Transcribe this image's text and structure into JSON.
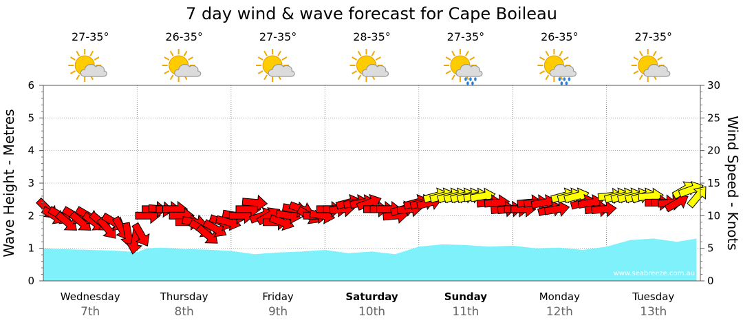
{
  "chart_data": {
    "type": "area",
    "title": "7 day wind & wave forecast for Cape Boileau",
    "ylabel": "Wave Height - Metres",
    "y2label": "Wind Speed - Knots",
    "ylim": [
      0,
      6
    ],
    "y2lim": [
      0,
      30
    ],
    "yticks": [
      "0",
      "1",
      "2",
      "3",
      "4",
      "5",
      "6"
    ],
    "y2ticks": [
      "0",
      "5",
      "10",
      "15",
      "20",
      "25",
      "30"
    ],
    "grid": true,
    "credit": "www.seabreeze.com.au",
    "days": [
      {
        "name": "Wednesday",
        "date": "7th",
        "temp": "27-35°",
        "weather_icon": "partly-cloudy-icon",
        "bold": false
      },
      {
        "name": "Thursday",
        "date": "8th",
        "temp": "26-35°",
        "weather_icon": "partly-cloudy-icon",
        "bold": false
      },
      {
        "name": "Friday",
        "date": "9th",
        "temp": "27-35°",
        "weather_icon": "partly-cloudy-icon",
        "bold": false
      },
      {
        "name": "Saturday",
        "date": "10th",
        "temp": "28-35°",
        "weather_icon": "partly-cloudy-icon",
        "bold": true
      },
      {
        "name": "Sunday",
        "date": "11th",
        "temp": "27-35°",
        "weather_icon": "showers-icon",
        "bold": true
      },
      {
        "name": "Monday",
        "date": "12th",
        "temp": "26-35°",
        "weather_icon": "showers-icon",
        "bold": false
      },
      {
        "name": "Tuesday",
        "date": "13th",
        "temp": "27-35°",
        "weather_icon": "partly-cloudy-icon",
        "bold": false
      }
    ],
    "wave_series": {
      "name": "Wave height",
      "x_days": [
        0,
        0.25,
        0.5,
        0.75,
        1,
        1.1,
        1.25,
        1.5,
        1.75,
        2,
        2.25,
        2.5,
        2.75,
        3,
        3.25,
        3.5,
        3.75,
        4,
        4.25,
        4.5,
        4.75,
        5,
        5.25,
        5.5,
        5.75,
        6,
        6.25,
        6.5,
        6.75,
        6.96
      ],
      "values": [
        1.0,
        0.97,
        0.95,
        0.93,
        0.88,
        1.0,
        1.02,
        0.98,
        0.96,
        0.92,
        0.82,
        0.87,
        0.9,
        0.95,
        0.85,
        0.9,
        0.82,
        1.05,
        1.12,
        1.1,
        1.05,
        1.08,
        1.0,
        1.02,
        0.95,
        1.05,
        1.25,
        1.3,
        1.2,
        1.3
      ]
    },
    "wind_series": {
      "name": "Wind",
      "x_days": [
        0,
        0.07,
        0.14,
        0.21,
        0.29,
        0.36,
        0.43,
        0.5,
        0.57,
        0.64,
        0.71,
        0.79,
        0.86,
        0.93,
        1,
        1.07,
        1.14,
        1.21,
        1.29,
        1.36,
        1.43,
        1.5,
        1.57,
        1.64,
        1.71,
        1.79,
        1.86,
        1.93,
        2,
        2.07,
        2.14,
        2.21,
        2.29,
        2.36,
        2.43,
        2.5,
        2.57,
        2.64,
        2.71,
        2.79,
        2.86,
        2.93,
        3,
        3.07,
        3.14,
        3.21,
        3.29,
        3.36,
        3.43,
        3.5,
        3.57,
        3.64,
        3.71,
        3.79,
        3.86,
        3.93,
        4,
        4.07,
        4.14,
        4.21,
        4.29,
        4.36,
        4.43,
        4.5,
        4.57,
        4.64,
        4.71,
        4.79,
        4.86,
        4.93,
        5,
        5.07,
        5.14,
        5.21,
        5.29,
        5.36,
        5.43,
        5.5,
        5.57,
        5.64,
        5.71,
        5.79,
        5.86,
        5.93,
        6,
        6.07,
        6.14,
        6.21,
        6.29,
        6.36,
        6.43,
        6.5,
        6.57,
        6.64,
        6.71,
        6.79,
        6.86,
        6.93
      ],
      "speed_knots": [
        11,
        10,
        10,
        9,
        10,
        9,
        10,
        9,
        9,
        8,
        9,
        8,
        7,
        6,
        7,
        10,
        11,
        11,
        11,
        11,
        10,
        9,
        9,
        8,
        7,
        8,
        9,
        9,
        10,
        10,
        11,
        12,
        10,
        10,
        9,
        9,
        10,
        11,
        11,
        10,
        10,
        10,
        11,
        11,
        11,
        12,
        12,
        12,
        12,
        11,
        11,
        11,
        10,
        11,
        11,
        12,
        12,
        12,
        13,
        13,
        13,
        13,
        13,
        13,
        13,
        13,
        12,
        12,
        11,
        11,
        11,
        11,
        12,
        12,
        12,
        11,
        11,
        13,
        13,
        13,
        12,
        12,
        11,
        11,
        13,
        13,
        13,
        13,
        13,
        13,
        13,
        12,
        12,
        12,
        12,
        14,
        14,
        13
      ],
      "direction_deg": [
        315,
        300,
        300,
        310,
        300,
        310,
        300,
        305,
        310,
        320,
        300,
        330,
        350,
        10,
        330,
        270,
        270,
        275,
        270,
        270,
        270,
        270,
        280,
        300,
        310,
        300,
        290,
        285,
        280,
        270,
        270,
        275,
        250,
        240,
        270,
        290,
        280,
        280,
        290,
        300,
        270,
        280,
        270,
        270,
        265,
        255,
        260,
        260,
        250,
        270,
        270,
        270,
        265,
        255,
        265,
        255,
        255,
        255,
        255,
        255,
        255,
        255,
        255,
        255,
        260,
        260,
        265,
        265,
        265,
        265,
        270,
        270,
        265,
        265,
        260,
        255,
        260,
        255,
        255,
        255,
        255,
        260,
        265,
        265,
        265,
        255,
        255,
        255,
        255,
        255,
        265,
        270,
        270,
        265,
        240,
        240,
        250,
        220
      ]
    }
  }
}
